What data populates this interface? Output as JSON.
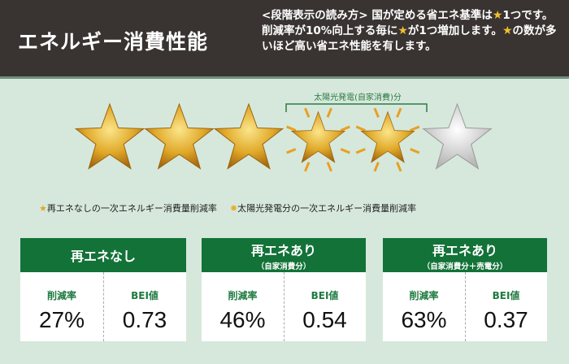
{
  "header": {
    "title": "エネルギー消費性能",
    "description": [
      "<段階表示の読み方> 国が定める省エネ基準は",
      "1つです。削減率が10%向上する毎に",
      "が1つ増加します。",
      "の数が多いほど高い省エネ性能を有します。"
    ]
  },
  "rating": {
    "total_stars": 6,
    "base_stars": 3,
    "solar_stars": 2,
    "bracket_label": "太陽光発電(自家消費)分"
  },
  "legend": [
    {
      "icon": "gold-star-icon",
      "label": "再エネなしの一次エネルギー消費量削減率"
    },
    {
      "icon": "sun-star-icon",
      "label": "太陽光発電分の一次エネルギー消費量削減率"
    }
  ],
  "cards": [
    {
      "title": "再エネなし",
      "subtitle": "",
      "rate_label": "削減率",
      "rate": "27%",
      "bei_label": "BEI値",
      "bei": "0.73"
    },
    {
      "title": "再エネあり",
      "subtitle": "（自家消費分）",
      "rate_label": "削減率",
      "rate": "46%",
      "bei_label": "BEI値",
      "bei": "0.54"
    },
    {
      "title": "再エネあり",
      "subtitle": "（自家消費分＋売電分）",
      "rate_label": "削減率",
      "rate": "63%",
      "bei_label": "BEI値",
      "bei": "0.37"
    }
  ],
  "colors": {
    "header_bg": "#393432",
    "card_header": "#137238",
    "background": "#d6e8dc",
    "star_gold": "#e0a828",
    "star_empty": "#c8c8c8"
  }
}
